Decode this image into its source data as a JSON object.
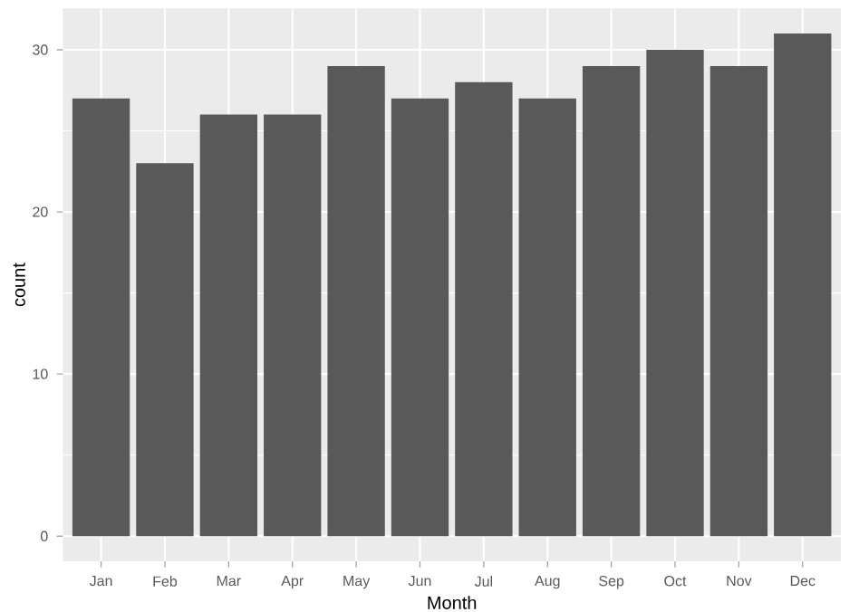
{
  "chart_data": {
    "type": "bar",
    "xlabel": "Month",
    "ylabel": "count",
    "categories": [
      "Jan",
      "Feb",
      "Mar",
      "Apr",
      "May",
      "Jun",
      "Jul",
      "Aug",
      "Sep",
      "Oct",
      "Nov",
      "Dec"
    ],
    "values": [
      27,
      23,
      26,
      26,
      29,
      27,
      28,
      27,
      29,
      30,
      29,
      31
    ],
    "color": "#595959",
    "ylim": [
      -1.55,
      32.55
    ],
    "yticks": [
      0,
      10,
      20,
      30
    ],
    "grid": true
  }
}
